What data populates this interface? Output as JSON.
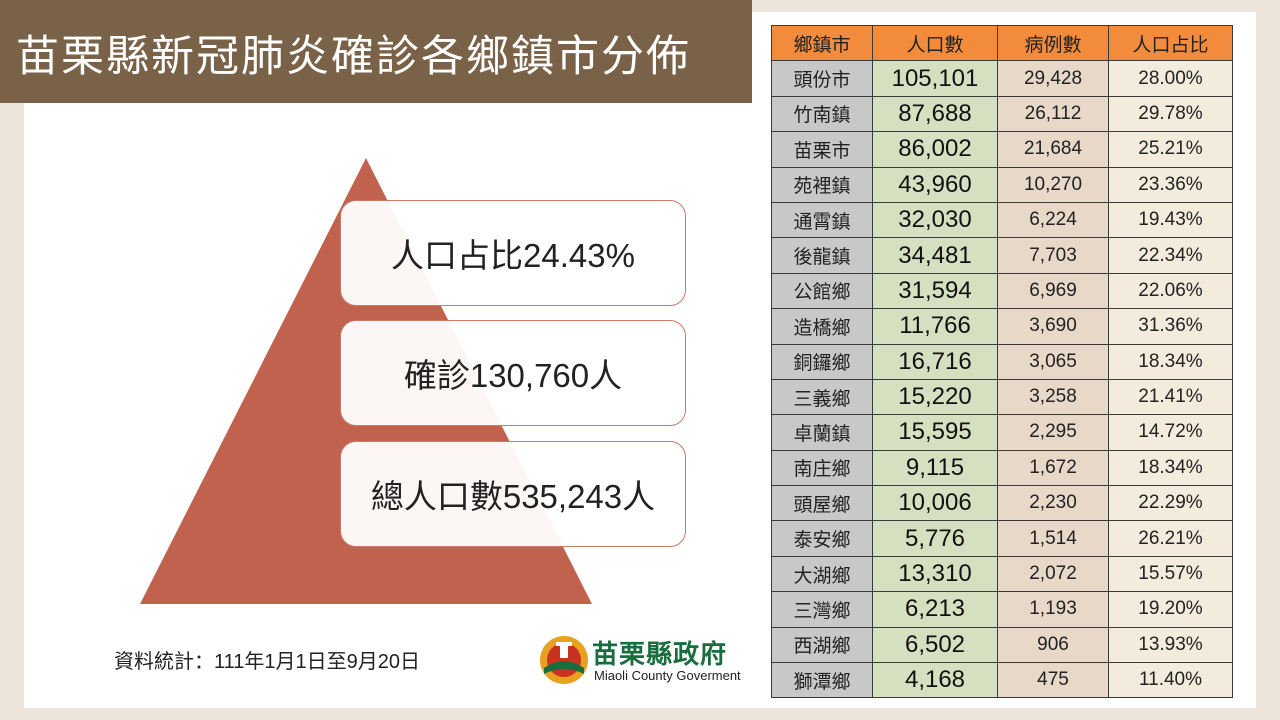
{
  "title": "苗栗縣新冠肺炎確診各鄉鎮市分佈",
  "pyramid": {
    "top_label": "人口占比24.43%",
    "middle_label": "確診130,760人",
    "bottom_label": "總人口數535,243人"
  },
  "footnote": "資料統計：111年1月1日至9月20日",
  "logo": {
    "name_cn": "苗栗縣政府",
    "name_en": "Miaoli County Goverment"
  },
  "colors": {
    "title_bar": "#7a6248",
    "pyramid": "#c0624d",
    "header": "#f28c3c",
    "town_col": "#c8c8c8",
    "pop_col": "#d5e0c1",
    "case_col": "#e8d8c8",
    "pct_col": "#f3ecdd"
  },
  "table": {
    "headers": [
      "鄉鎮市",
      "人口數",
      "病例數",
      "人口占比"
    ],
    "rows": [
      [
        "頭份市",
        "105,101",
        "29,428",
        "28.00%"
      ],
      [
        "竹南鎮",
        "87,688",
        "26,112",
        "29.78%"
      ],
      [
        "苗栗市",
        "86,002",
        "21,684",
        "25.21%"
      ],
      [
        "苑裡鎮",
        "43,960",
        "10,270",
        "23.36%"
      ],
      [
        "通霄鎮",
        "32,030",
        "6,224",
        "19.43%"
      ],
      [
        "後龍鎮",
        "34,481",
        "7,703",
        "22.34%"
      ],
      [
        "公館鄉",
        "31,594",
        "6,969",
        "22.06%"
      ],
      [
        "造橋鄉",
        "11,766",
        "3,690",
        "31.36%"
      ],
      [
        "銅鑼鄉",
        "16,716",
        "3,065",
        "18.34%"
      ],
      [
        "三義鄉",
        "15,220",
        "3,258",
        "21.41%"
      ],
      [
        "卓蘭鎮",
        "15,595",
        "2,295",
        "14.72%"
      ],
      [
        "南庄鄉",
        "9,115",
        "1,672",
        "18.34%"
      ],
      [
        "頭屋鄉",
        "10,006",
        "2,230",
        "22.29%"
      ],
      [
        "泰安鄉",
        "5,776",
        "1,514",
        "26.21%"
      ],
      [
        "大湖鄉",
        "13,310",
        "2,072",
        "15.57%"
      ],
      [
        "三灣鄉",
        "6,213",
        "1,193",
        "19.20%"
      ],
      [
        "西湖鄉",
        "6,502",
        "906",
        "13.93%"
      ],
      [
        "獅潭鄉",
        "4,168",
        "475",
        "11.40%"
      ]
    ]
  }
}
